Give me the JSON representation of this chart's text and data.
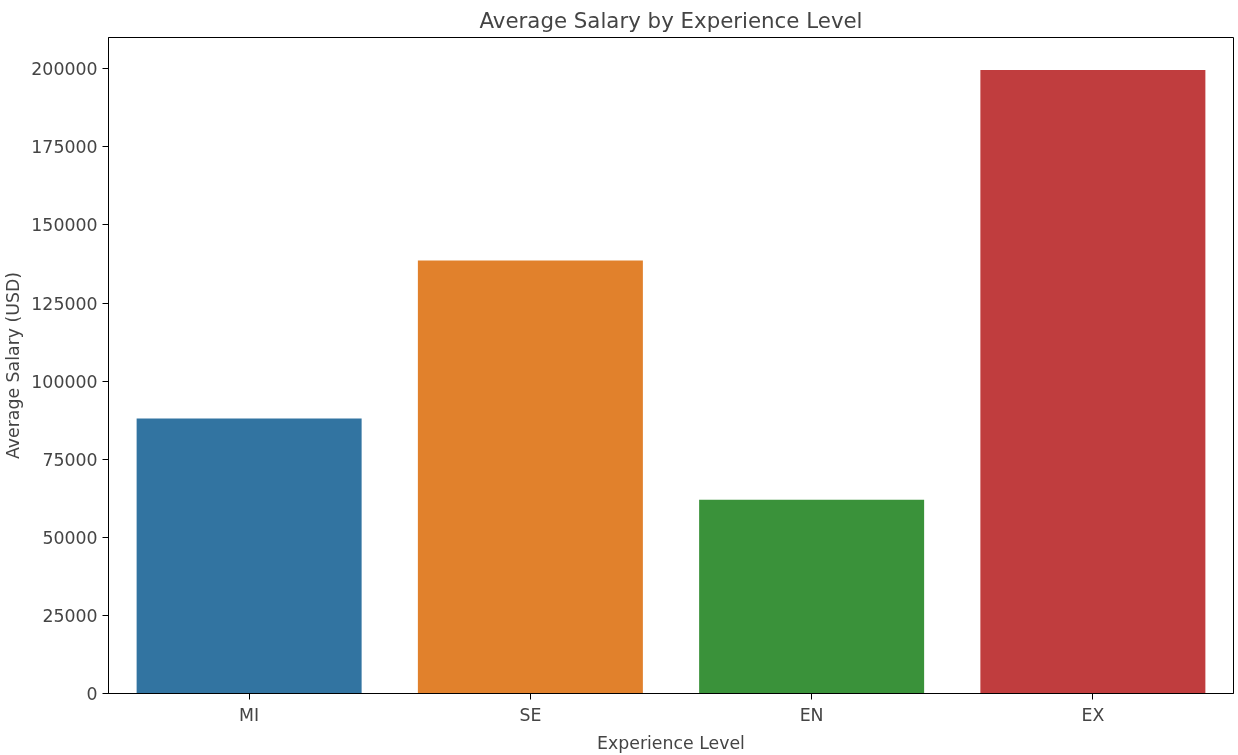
{
  "chart_data": {
    "type": "bar",
    "title": "Average Salary by Experience Level",
    "xlabel": "Experience Level",
    "ylabel": "Average Salary (USD)",
    "categories": [
      "MI",
      "SE",
      "EN",
      "EX"
    ],
    "values": [
      88000,
      138600,
      62000,
      199600
    ],
    "colors": [
      "#3274a1",
      "#e1812c",
      "#3a923a",
      "#c03d3e"
    ],
    "ylim": [
      0,
      210000
    ],
    "yticks": [
      0,
      25000,
      50000,
      75000,
      100000,
      125000,
      150000,
      175000,
      200000
    ],
    "grid": false
  }
}
